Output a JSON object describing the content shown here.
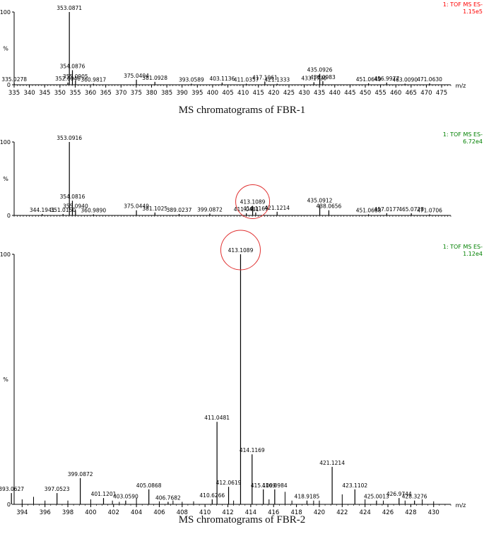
{
  "captions": {
    "fbr1": "MS chromatograms of FBR-1",
    "fbr2": "MS chromatograms of FBR-2"
  },
  "chart_data": [
    {
      "type": "bar",
      "name_key": "top",
      "instrument_label": "1: TOF MS ES-",
      "intensity_label": "1.15e5",
      "label_color": "#ff0000",
      "xlabel": "m/z",
      "ylabel": "%",
      "xlim": [
        335,
        478
      ],
      "ylim": [
        0,
        100
      ],
      "x_ticks": [
        335,
        340,
        345,
        350,
        355,
        360,
        365,
        370,
        375,
        380,
        385,
        390,
        395,
        400,
        405,
        410,
        415,
        420,
        425,
        430,
        435,
        440,
        445,
        450,
        455,
        460,
        465,
        470,
        475
      ],
      "y_ticks": [
        0,
        100
      ],
      "peaks": [
        {
          "mz": 335.0278,
          "rel": 2.0,
          "label": "335.0278"
        },
        {
          "mz": 352.6046,
          "rel": 3.0,
          "label": "352.6046"
        },
        {
          "mz": 353.0871,
          "rel": 100,
          "label": "353.0871"
        },
        {
          "mz": 354.0876,
          "rel": 20,
          "label": "354.0876"
        },
        {
          "mz": 355.0905,
          "rel": 6.0,
          "label": "355.0905"
        },
        {
          "mz": 360.9817,
          "rel": 1.5,
          "label": "360.9817"
        },
        {
          "mz": 375.0404,
          "rel": 7.0,
          "label": "375.0404"
        },
        {
          "mz": 381.0928,
          "rel": 4.0,
          "label": "381.0928"
        },
        {
          "mz": 393.0589,
          "rel": 1.5,
          "label": "393.0589"
        },
        {
          "mz": 403.1136,
          "rel": 3.0,
          "label": "403.1136"
        },
        {
          "mz": 411.0357,
          "rel": 1.5,
          "label": "411.0357"
        },
        {
          "mz": 417.1061,
          "rel": 4.5,
          "label": "417.1061"
        },
        {
          "mz": 421.1333,
          "rel": 1.5,
          "label": "421.1333"
        },
        {
          "mz": 433.173,
          "rel": 3.5,
          "label": "433.1730"
        },
        {
          "mz": 435.0926,
          "rel": 15,
          "label": "435.0926"
        },
        {
          "mz": 436.0983,
          "rel": 5.0,
          "label": "436.0983"
        },
        {
          "mz": 451.0649,
          "rel": 2.0,
          "label": "451.0649"
        },
        {
          "mz": 456.9977,
          "rel": 3.0,
          "label": "456.9977"
        },
        {
          "mz": 463.009,
          "rel": 1.5,
          "label": "463.0090"
        },
        {
          "mz": 471.063,
          "rel": 2.0,
          "label": "471.0630"
        }
      ]
    },
    {
      "type": "bar",
      "name_key": "middle",
      "instrument_label": "1: TOF MS ES-",
      "intensity_label": "6.72e4",
      "label_color": "#008000",
      "xlabel": "",
      "ylabel": "%",
      "xlim": [
        335,
        478
      ],
      "ylim": [
        0,
        100
      ],
      "x_ticks": [],
      "y_ticks": [
        0,
        100
      ],
      "circle_label": "413.1089",
      "peaks": [
        {
          "mz": 344.1941,
          "rel": 2.0,
          "label": "344.1941"
        },
        {
          "mz": 351.015,
          "rel": 2.0,
          "label": "351.0150"
        },
        {
          "mz": 353.0916,
          "rel": 100,
          "label": "353.0916"
        },
        {
          "mz": 354.0816,
          "rel": 20,
          "label": "354.0816"
        },
        {
          "mz": 355.094,
          "rel": 7.0,
          "label": "355.0940"
        },
        {
          "mz": 360.989,
          "rel": 1.5,
          "label": "360.9890"
        },
        {
          "mz": 375.0449,
          "rel": 7.0,
          "label": "375.0449"
        },
        {
          "mz": 381.1025,
          "rel": 4.0,
          "label": "381.1025"
        },
        {
          "mz": 389.0237,
          "rel": 2.0,
          "label": "389.0237"
        },
        {
          "mz": 399.0872,
          "rel": 2.5,
          "label": "399.0872"
        },
        {
          "mz": 411.0481,
          "rel": 3.0,
          "label": "411.0481"
        },
        {
          "mz": 413.1089,
          "rel": 13,
          "label": "413.1089"
        },
        {
          "mz": 414.1169,
          "rel": 4.0,
          "label": "414.1169"
        },
        {
          "mz": 421.1214,
          "rel": 5.0,
          "label": "421.1214"
        },
        {
          "mz": 435.0912,
          "rel": 15,
          "label": "435.0912"
        },
        {
          "mz": 438.0656,
          "rel": 7.0,
          "label": "438.0656"
        },
        {
          "mz": 451.0688,
          "rel": 1.5,
          "label": "451.0688"
        },
        {
          "mz": 457.0177,
          "rel": 3.0,
          "label": "457.0177"
        },
        {
          "mz": 465.0728,
          "rel": 3.0,
          "label": "465.0728"
        },
        {
          "mz": 471.0706,
          "rel": 1.5,
          "label": "471.0706"
        }
      ]
    },
    {
      "type": "bar",
      "name_key": "bottom",
      "instrument_label": "1: TOF MS ES-",
      "intensity_label": "1.12e4",
      "label_color": "#008000",
      "xlabel": "m/z",
      "ylabel": "%",
      "xlim": [
        393.3,
        431.5
      ],
      "ylim": [
        0,
        100
      ],
      "x_ticks": [
        394,
        396,
        398,
        400,
        402,
        404,
        406,
        408,
        410,
        412,
        414,
        416,
        418,
        420,
        422,
        424,
        426,
        428,
        430
      ],
      "y_ticks": [
        0,
        100
      ],
      "circle_label": "413.1089",
      "peaks": [
        {
          "mz": 393.0627,
          "rel": 4.5,
          "label": "393.0627"
        },
        {
          "mz": 397.0523,
          "rel": 4.5,
          "label": "397.0523"
        },
        {
          "mz": 399.0872,
          "rel": 10.5,
          "label": "399.0872"
        },
        {
          "mz": 401.1201,
          "rel": 2.5,
          "label": "401.1201"
        },
        {
          "mz": 403.059,
          "rel": 1.5,
          "label": "403.0590"
        },
        {
          "mz": 405.0868,
          "rel": 6.0,
          "label": "405.0868"
        },
        {
          "mz": 406.7682,
          "rel": 1.0,
          "label": "406.7682"
        },
        {
          "mz": 410.6266,
          "rel": 2.0,
          "label": "410.6266"
        },
        {
          "mz": 411.0481,
          "rel": 33,
          "label": "411.0481"
        },
        {
          "mz": 412.0619,
          "rel": 7.0,
          "label": "412.0619"
        },
        {
          "mz": 413.1089,
          "rel": 100,
          "label": "413.1089"
        },
        {
          "mz": 414.1169,
          "rel": 20,
          "label": "414.1169"
        },
        {
          "mz": 415.1009,
          "rel": 6.0,
          "label": "415.1009"
        },
        {
          "mz": 416.0984,
          "rel": 6.0,
          "label": "416.0984"
        },
        {
          "mz": 418.9185,
          "rel": 1.5,
          "label": "418.9185"
        },
        {
          "mz": 421.1214,
          "rel": 15,
          "label": "421.1214"
        },
        {
          "mz": 423.1102,
          "rel": 6.0,
          "label": "423.1102"
        },
        {
          "mz": 425.0013,
          "rel": 1.5,
          "label": "425.0013"
        },
        {
          "mz": 426.9744,
          "rel": 2.5,
          "label": "426.9744"
        },
        {
          "mz": 428.3276,
          "rel": 1.5,
          "label": "428.3276"
        }
      ],
      "minor_peaks": [
        {
          "mz": 394.0,
          "rel": 2.0
        },
        {
          "mz": 395.0,
          "rel": 3.0
        },
        {
          "mz": 396.0,
          "rel": 1.5
        },
        {
          "mz": 398.0,
          "rel": 1.5
        },
        {
          "mz": 400.0,
          "rel": 2.0
        },
        {
          "mz": 401.9,
          "rel": 1.5
        },
        {
          "mz": 402.5,
          "rel": 1.0
        },
        {
          "mz": 404.0,
          "rel": 2.5
        },
        {
          "mz": 406.0,
          "rel": 1.2
        },
        {
          "mz": 407.2,
          "rel": 1.5
        },
        {
          "mz": 408.0,
          "rel": 1.0
        },
        {
          "mz": 409.0,
          "rel": 1.2
        },
        {
          "mz": 412.5,
          "rel": 1.5
        },
        {
          "mz": 415.6,
          "rel": 2.0
        },
        {
          "mz": 417.0,
          "rel": 5.0
        },
        {
          "mz": 417.6,
          "rel": 1.5
        },
        {
          "mz": 419.5,
          "rel": 1.5
        },
        {
          "mz": 420.0,
          "rel": 1.5
        },
        {
          "mz": 422.0,
          "rel": 4.0
        },
        {
          "mz": 424.0,
          "rel": 2.0
        },
        {
          "mz": 425.6,
          "rel": 1.5
        },
        {
          "mz": 427.5,
          "rel": 1.5
        },
        {
          "mz": 429.0,
          "rel": 2.0
        },
        {
          "mz": 430.0,
          "rel": 1.2
        }
      ]
    }
  ]
}
